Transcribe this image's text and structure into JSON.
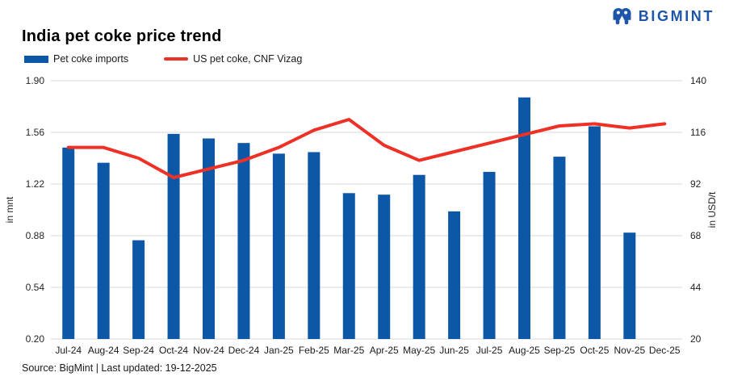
{
  "header": {
    "logo_text": "BIGMINT",
    "title": "India pet coke price trend"
  },
  "footer": {
    "source": "Source: BigMint | Last updated: 19-12-2025"
  },
  "colors": {
    "bar": "#0d57a7",
    "line": "#ee3126",
    "grid": "#d9d9d9",
    "logo": "#1d55a8"
  },
  "chart_data": {
    "type": "bar+line",
    "title": "India pet coke price trend",
    "categories": [
      "Jul-24",
      "Aug-24",
      "Sep-24",
      "Oct-24",
      "Nov-24",
      "Dec-24",
      "Jan-25",
      "Feb-25",
      "Mar-25",
      "Apr-25",
      "May-25",
      "Jun-25",
      "Jul-25",
      "Aug-25",
      "Sep-25",
      "Oct-25",
      "Nov-25",
      "Dec-25"
    ],
    "series": [
      {
        "name": "Pet coke imports",
        "type": "bar",
        "axis": "left",
        "color": "#0d57a7",
        "values": [
          1.46,
          1.36,
          0.85,
          1.55,
          1.52,
          1.49,
          1.42,
          1.43,
          1.16,
          1.15,
          1.28,
          1.04,
          1.3,
          1.79,
          1.4,
          1.6,
          0.9,
          null
        ]
      },
      {
        "name": "US pet coke, CNF Vizag",
        "type": "line",
        "axis": "right",
        "color": "#ee3126",
        "values": [
          109,
          109,
          104,
          95,
          99,
          103,
          109,
          117,
          122,
          110,
          103,
          107,
          111,
          115,
          119,
          120,
          118,
          120
        ]
      }
    ],
    "left_axis": {
      "label": "in mnt",
      "min": 0.2,
      "max": 1.9,
      "ticks": [
        1.9,
        1.56,
        1.22,
        0.88,
        0.54,
        0.2
      ]
    },
    "right_axis": {
      "label": "in USD/t",
      "min": 20,
      "max": 140,
      "ticks": [
        140,
        116,
        92,
        68,
        44,
        20
      ]
    },
    "grid": true,
    "legend_position": "top-left"
  }
}
